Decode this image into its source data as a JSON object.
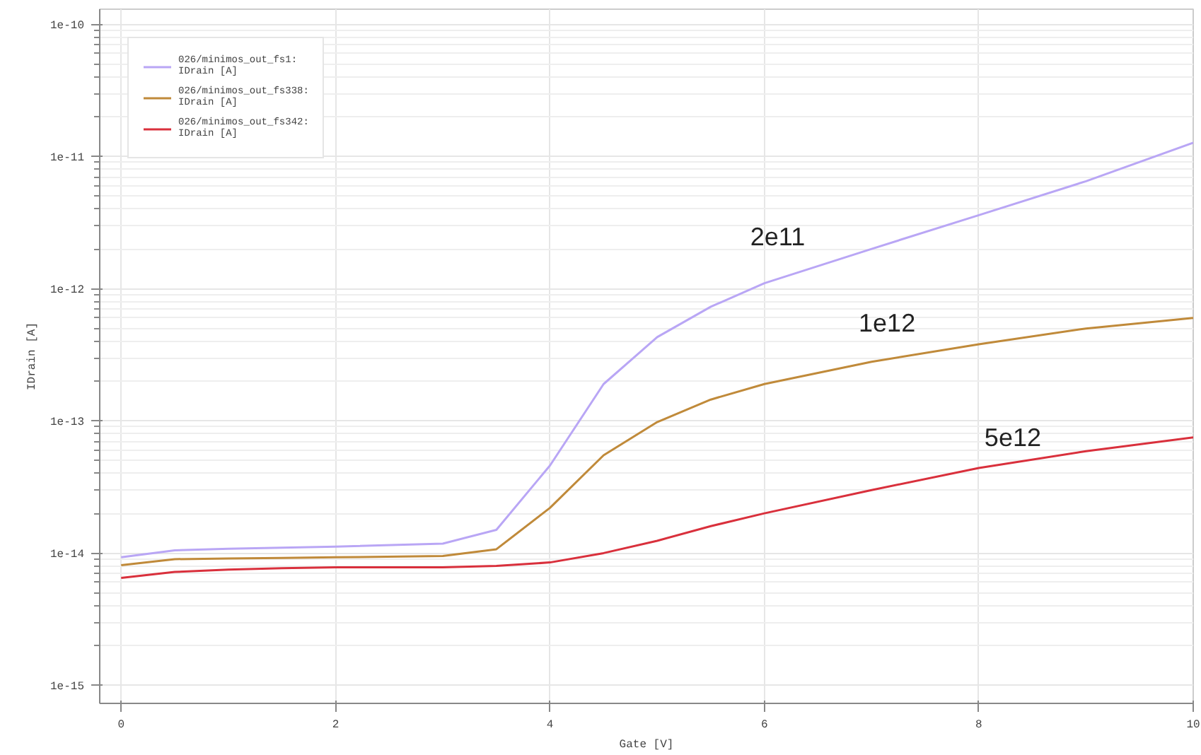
{
  "chart_data": {
    "type": "line",
    "xlabel": "Gate [V]",
    "ylabel": "IDrain [A]",
    "x": [
      0,
      0.5,
      1,
      1.5,
      2,
      3,
      3.5,
      4,
      4.5,
      5,
      5.5,
      6,
      7,
      8,
      9,
      10
    ],
    "series": [
      {
        "name": "026/minimos_out_fs1:\nIDrain [A]",
        "color": "#b9a6f5",
        "values": [
          9.3e-15,
          1.05e-14,
          1.08e-14,
          1.1e-14,
          1.12e-14,
          1.18e-14,
          1.5e-14,
          4.6e-14,
          1.9e-13,
          4.3e-13,
          7.3e-13,
          1.1e-12,
          2e-12,
          3.6e-12,
          6.5e-12,
          1.27e-11
        ]
      },
      {
        "name": "026/minimos_out_fs338:\nIDrain [A]",
        "color": "#c08a3a",
        "values": [
          8.1e-15,
          9e-15,
          9.1e-15,
          9.2e-15,
          9.3e-15,
          9.5e-15,
          1.07e-14,
          2.2e-14,
          5.5e-14,
          9.8e-14,
          1.45e-13,
          1.9e-13,
          2.8e-13,
          3.8e-13,
          5e-13,
          6e-13
        ]
      },
      {
        "name": "026/minimos_out_fs342:\nIDrain [A]",
        "color": "#d9303c",
        "values": [
          6.5e-15,
          7.2e-15,
          7.5e-15,
          7.7e-15,
          7.8e-15,
          7.8e-15,
          8e-15,
          8.5e-15,
          1e-14,
          1.24e-14,
          1.6e-14,
          2e-14,
          3e-14,
          4.4e-14,
          5.9e-14,
          7.5e-14
        ]
      }
    ],
    "annotations": [
      "2e11",
      "1e12",
      "5e12"
    ],
    "log": "y",
    "grid": true,
    "legend": "top left",
    "line_style": "solid",
    "marker": "none",
    "xlim": [
      -0.2,
      10
    ],
    "ylim": [
      7.3e-16,
      1.3e-10
    ],
    "xticks": [
      0,
      2,
      4,
      6,
      8,
      10
    ],
    "yticks": [
      {
        "value": 1e-15,
        "label": "1e-15"
      },
      {
        "value": 1e-14,
        "label": "1e-14"
      },
      {
        "value": 1e-13,
        "label": "1e-13"
      },
      {
        "value": 1e-12,
        "label": "1e-12"
      },
      {
        "value": 1e-11,
        "label": "1e-11"
      },
      {
        "value": 1e-10,
        "label": "1e-10"
      }
    ]
  }
}
